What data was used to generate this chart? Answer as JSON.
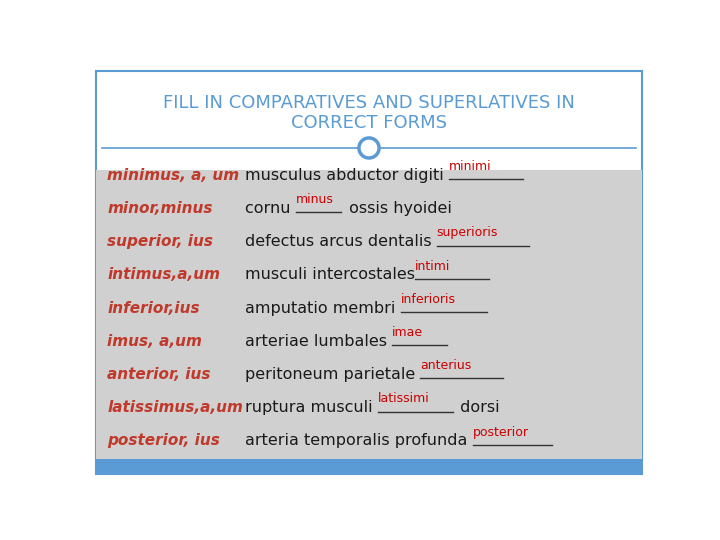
{
  "title_line1": "FILL IN COMPARATIVES AND SUPERLATIVES IN",
  "title_line2": "CORRECT FORMS",
  "title_color": "#5B9BD5",
  "bg_color": "#D0D0D0",
  "header_bg": "#FFFFFF",
  "accent_color": "#5B9BD5",
  "left_col_color": "#C0392B",
  "right_col_color": "#1A1A1A",
  "answer_color": "#CC0000",
  "underline_color": "#333333",
  "bottom_bar_color": "#5B9BD5",
  "rows": [
    {
      "left": "minimus, a, um",
      "right_before": "musculus abductor digiti ",
      "answer": "minimi",
      "right_after": "",
      "blank_extra": 40
    },
    {
      "left": "minor,minus",
      "right_before": "cornu ",
      "answer": "minus",
      "right_after": " ossis hyoidei",
      "blank_extra": 10
    },
    {
      "left": "superior, ius",
      "right_before": "defectus arcus dentalis ",
      "answer": "superioris",
      "right_after": "",
      "blank_extra": 40
    },
    {
      "left": "intimus,a,um",
      "right_before": "musculi intercostales",
      "answer": "intimi",
      "right_after": "",
      "blank_extra": 50
    },
    {
      "left": "inferior,ius",
      "right_before": "amputatio membri ",
      "answer": "inferioris",
      "right_after": "",
      "blank_extra": 40
    },
    {
      "left": "imus, a,um",
      "right_before": "arteriae lumbales ",
      "answer": "imae",
      "right_after": "",
      "blank_extra": 30
    },
    {
      "left": "anterior, ius",
      "right_before": "peritoneum parietale ",
      "answer": "anterius",
      "right_after": "",
      "blank_extra": 40
    },
    {
      "left": "latissimus,a,um",
      "right_before": "ruptura musculi ",
      "answer": "latissimi",
      "right_after": " dorsi",
      "blank_extra": 30
    },
    {
      "left": "posterior, ius",
      "right_before": "arteria temporalis profunda ",
      "answer": "posterior",
      "right_after": "",
      "blank_extra": 30
    }
  ],
  "fig_width": 7.2,
  "fig_height": 5.4,
  "dpi": 100
}
